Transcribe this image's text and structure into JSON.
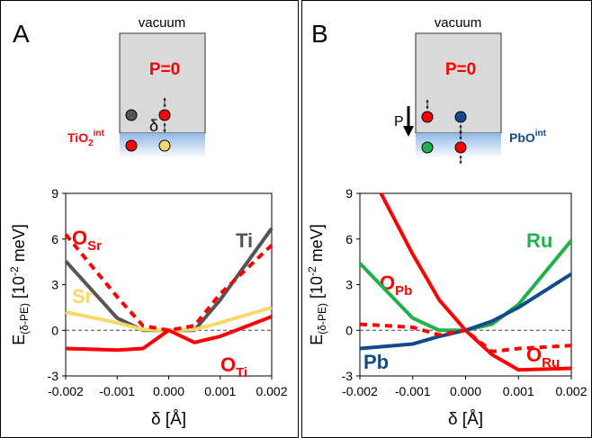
{
  "chart_data": [
    {
      "type": "line",
      "panel_label": "A",
      "schematic": {
        "top": "vacuum",
        "polarization": "P=0",
        "delta": "δ",
        "interface": {
          "main": "TiO",
          "sub": "2",
          "sup": "int"
        }
      },
      "x": [
        -0.002,
        -0.001,
        -0.0005,
        0,
        0.0005,
        0.001,
        0.002
      ],
      "series": [
        {
          "name": "Ti",
          "color": "#555555",
          "dashed": false,
          "values": [
            4.55,
            0.8,
            0,
            0,
            0,
            2,
            6.7
          ]
        },
        {
          "name": "Sr",
          "color": "#f7d86b",
          "dashed": false,
          "values": [
            1.2,
            0.5,
            0.05,
            0,
            0.05,
            0.5,
            1.5
          ]
        },
        {
          "name": "O",
          "name_sub": "Sr",
          "color": "#ff0000",
          "dashed": true,
          "values": [
            6.3,
            2.2,
            0.3,
            0,
            0.3,
            2.4,
            5.6
          ]
        },
        {
          "name": "O",
          "name_sub": "Ti",
          "color": "#ff0000",
          "dashed": false,
          "values": [
            -1.2,
            -1.3,
            -1.2,
            0,
            -0.8,
            -0.4,
            0.9
          ]
        }
      ],
      "xlim": [
        -0.002,
        0.002
      ],
      "xticks": [
        -0.002,
        -0.001,
        {
          "value": 0,
          "label": "0.000"
        },
        0.001,
        0.002
      ],
      "ylim": [
        -3,
        9
      ],
      "yticks": [
        -3,
        0,
        3,
        6,
        9
      ],
      "x_label": "δ [Å]",
      "y_label": {
        "main": "E",
        "sub": "(δ-PE)",
        "rest": " [10",
        "sup": "-2",
        "end": " meV]"
      }
    },
    {
      "type": "line",
      "panel_label": "B",
      "schematic": {
        "top": "vacuum",
        "polarization": "P=0",
        "arrow_label": "P",
        "interface": {
          "main": "PbO",
          "sup": "int"
        }
      },
      "x": [
        -0.002,
        -0.001,
        -0.0005,
        0,
        0.0005,
        0.001,
        0.002
      ],
      "series": [
        {
          "name": "O",
          "name_sub": "Pb",
          "color": "#ff0000",
          "dashed": false,
          "x": [
            -0.0016,
            -0.001,
            -0.0005,
            0,
            0.0005,
            0.001,
            0.002
          ],
          "values": [
            9,
            5,
            2,
            0,
            -1.6,
            -2.6,
            -2.5
          ]
        },
        {
          "name": "Ru",
          "color": "#22b04b",
          "dashed": false,
          "values": [
            4.4,
            0.8,
            0,
            0,
            0.4,
            1.7,
            5.9
          ]
        },
        {
          "name": "Pb",
          "color": "#114b8c",
          "dashed": false,
          "values": [
            -1.2,
            -0.9,
            -0.4,
            0,
            0.6,
            1.5,
            3.7
          ]
        },
        {
          "name": "O",
          "name_sub": "Ru",
          "color": "#ff0000",
          "dashed": true,
          "values": [
            0.4,
            0.2,
            -0.3,
            0,
            -1.4,
            -1.2,
            -1.0
          ]
        }
      ],
      "xlim": [
        -0.002,
        0.002
      ],
      "xticks": [
        -0.002,
        -0.001,
        {
          "value": 0,
          "label": "0.000"
        },
        0.001,
        0.002
      ],
      "ylim": [
        -3,
        9
      ],
      "yticks": [
        -3,
        0,
        3,
        6,
        9
      ],
      "x_label": "δ [Å]",
      "y_label": {
        "main": "E",
        "sub": "(δ-PE)",
        "rest": " [10",
        "sup": "-2",
        "end": " meV]"
      }
    }
  ]
}
